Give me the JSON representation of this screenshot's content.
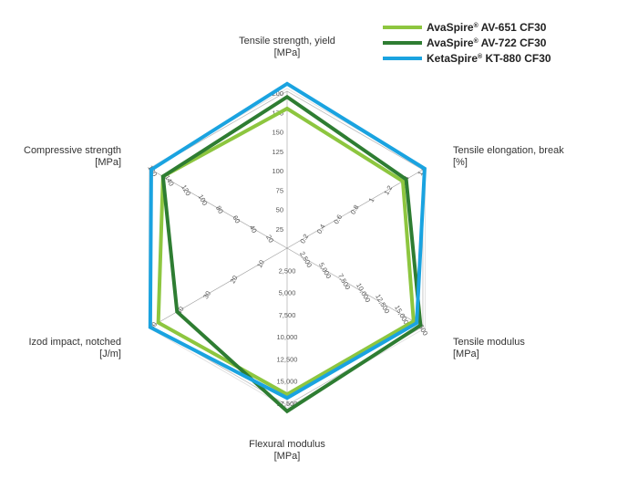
{
  "chart_data": {
    "type": "radar",
    "axes": [
      {
        "id": "tensile_strength",
        "label": [
          "Tensile strength, yield",
          "[MPa]"
        ],
        "ticks": [
          "25",
          "50",
          "75",
          "100",
          "125",
          "150",
          "175",
          "200"
        ],
        "max": 200
      },
      {
        "id": "tensile_elongation",
        "label": [
          "Tensile elongation, break",
          "[%]"
        ],
        "ticks": [
          "0.2",
          "0.4",
          "0.6",
          "0.8",
          "1",
          "1.2",
          "1.4",
          "1.6"
        ],
        "max": 1.6
      },
      {
        "id": "tensile_modulus",
        "label": [
          "Tensile modulus",
          "[MPa]"
        ],
        "ticks": [
          "2,500",
          "5,000",
          "7,500",
          "10,000",
          "12,500",
          "15,000",
          "17,500"
        ],
        "max": 17500
      },
      {
        "id": "flexural_modulus",
        "label": [
          "Flexural modulus",
          "[MPa]"
        ],
        "ticks": [
          "2,500",
          "5,000",
          "7,500",
          "10,000",
          "12,500",
          "15,000",
          "17,500"
        ],
        "max": 17500
      },
      {
        "id": "izod_impact",
        "label": [
          "Izod impact, notched",
          "[J/m]"
        ],
        "ticks": [
          "10",
          "20",
          "30",
          "40",
          "50"
        ],
        "max": 50
      },
      {
        "id": "compressive_strength",
        "label": [
          "Compressive strength",
          "[MPa]"
        ],
        "ticks": [
          "20",
          "40",
          "60",
          "80",
          "100",
          "120",
          "140",
          "160"
        ],
        "max": 160
      }
    ],
    "series": [
      {
        "name": "AvaSpire",
        "name_sup": "®",
        "name_rest": " AV-651 CF30",
        "color": "#8dc63f",
        "values": [
          180,
          1.38,
          16500,
          16500,
          48,
          148
        ]
      },
      {
        "name": "AvaSpire",
        "name_sup": "®",
        "name_rest": " AV-722 CF30",
        "color": "#2e7d32",
        "values": [
          195,
          1.42,
          17400,
          18400,
          41,
          148
        ]
      },
      {
        "name": "KetaSpire",
        "name_sup": "®",
        "name_rest": " KT-880 CF30",
        "color": "#1aa3e0",
        "values": [
          212,
          1.64,
          16900,
          16900,
          51,
          162
        ]
      }
    ],
    "legend_position": "top-right",
    "grid": false
  }
}
